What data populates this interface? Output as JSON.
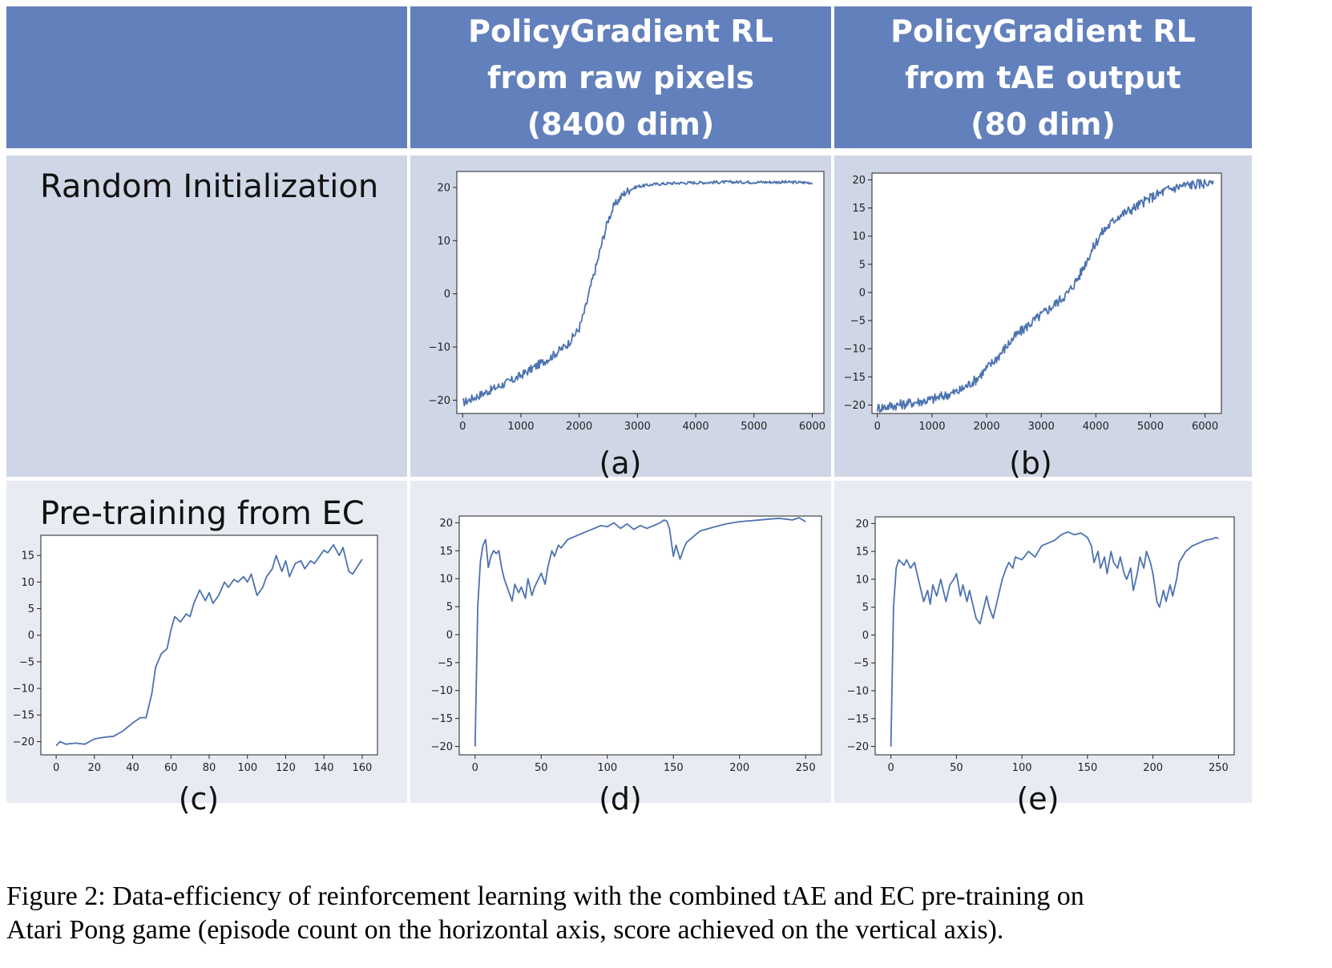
{
  "columns": {
    "raw": [
      "PolicyGradient RL",
      "from raw pixels",
      "(8400 dim)"
    ],
    "tae": [
      "PolicyGradient RL",
      "from tAE output",
      "(80 dim)"
    ]
  },
  "rows": {
    "random": "Random Initialization",
    "pretrain": "Pre-training from EC"
  },
  "caption": {
    "line1": "Figure 2: Data-efficiency of reinforcement learning with the combined tAE and EC pre-training on",
    "line2": "Atari Pong game (episode count on the horizontal axis, score achieved on the vertical axis)."
  },
  "chart_data": [
    {
      "id": "a",
      "label": "(a)",
      "type": "line",
      "color": "#4c72b0",
      "xlim": [
        -100,
        6200
      ],
      "ylim": [
        -22.5,
        23
      ],
      "xticks": [
        0,
        1000,
        2000,
        3000,
        4000,
        5000,
        6000
      ],
      "yticks": [
        -20,
        -10,
        0,
        10,
        20
      ],
      "series": [
        {
          "x": [
            0,
            300,
            600,
            900,
            1200,
            1500,
            1800,
            2000,
            2100,
            2200,
            2300,
            2400,
            2500,
            2600,
            2700,
            2800,
            3000,
            3300,
            3600,
            4000,
            4500,
            5000,
            5500,
            6000
          ],
          "y": [
            -20.5,
            -19,
            -17.5,
            -16,
            -14,
            -12,
            -9.5,
            -6.5,
            -3,
            1.5,
            5.5,
            10,
            14,
            16.5,
            18,
            19.2,
            20.2,
            20.6,
            20.8,
            20.9,
            21,
            21,
            21,
            20.9
          ]
        }
      ],
      "noise": 0.8
    },
    {
      "id": "b",
      "label": "(b)",
      "type": "line",
      "color": "#4c72b0",
      "xlim": [
        -100,
        6300
      ],
      "ylim": [
        -21.5,
        21.2
      ],
      "xticks": [
        0,
        1000,
        2000,
        3000,
        4000,
        5000,
        6000
      ],
      "yticks": [
        -20,
        -15,
        -10,
        -5,
        0,
        5,
        10,
        15,
        20
      ],
      "series": [
        {
          "x": [
            0,
            500,
            1000,
            1500,
            1800,
            2000,
            2200,
            2500,
            2800,
            3000,
            3200,
            3500,
            3700,
            3900,
            4100,
            4400,
            4700,
            5000,
            5300,
            5600,
            5900,
            6150
          ],
          "y": [
            -20.5,
            -19.8,
            -19,
            -17.5,
            -15.5,
            -13.5,
            -11.5,
            -8,
            -5.5,
            -4,
            -2.5,
            0,
            3,
            7,
            10.5,
            13.5,
            15,
            16.8,
            18.2,
            19,
            19.3,
            19.6
          ]
        }
      ],
      "noise": 0.9
    },
    {
      "id": "c",
      "label": "(c)",
      "type": "line",
      "color": "#4c72b0",
      "xlim": [
        -8,
        168
      ],
      "ylim": [
        -22.5,
        18.8
      ],
      "xticks": [
        0,
        20,
        40,
        60,
        80,
        100,
        120,
        140,
        160
      ],
      "yticks": [
        -20,
        -15,
        -10,
        -5,
        0,
        5,
        10,
        15
      ],
      "series": [
        {
          "x": [
            0,
            2,
            5,
            10,
            15,
            20,
            25,
            30,
            35,
            40,
            44,
            47,
            50,
            52,
            55,
            58,
            60,
            62,
            65,
            68,
            70,
            72,
            75,
            78,
            80,
            82,
            85,
            88,
            90,
            93,
            95,
            98,
            100,
            102,
            105,
            108,
            110,
            113,
            115,
            118,
            120,
            122,
            125,
            128,
            130,
            133,
            135,
            138,
            140,
            142,
            145,
            148,
            150,
            153,
            155,
            160
          ],
          "y": [
            -20.8,
            -20,
            -20.5,
            -20.3,
            -20.5,
            -19.5,
            -19.2,
            -19,
            -18,
            -16.5,
            -15.5,
            -15.5,
            -11,
            -6,
            -3.5,
            -2.5,
            1,
            3.5,
            2.5,
            4,
            3.5,
            6,
            8.5,
            6.5,
            8,
            6,
            7.5,
            10,
            9,
            10.5,
            10,
            11,
            10,
            11.5,
            7.5,
            9,
            11,
            12.5,
            15,
            12,
            14,
            11,
            13.5,
            14,
            12.5,
            14,
            13.5,
            15,
            16,
            15.5,
            17,
            15,
            16.5,
            12,
            11.5,
            14.3
          ]
        }
      ],
      "noise": 0
    },
    {
      "id": "d",
      "label": "(d)",
      "type": "line",
      "color": "#4c72b0",
      "xlim": [
        -12,
        262
      ],
      "ylim": [
        -21.5,
        21.2
      ],
      "xticks": [
        0,
        50,
        100,
        150,
        200,
        250
      ],
      "yticks": [
        -20,
        -15,
        -10,
        -5,
        0,
        5,
        10,
        15,
        20
      ],
      "series": [
        {
          "x": [
            0,
            2,
            4,
            6,
            8,
            10,
            12,
            14,
            16,
            18,
            20,
            22,
            25,
            28,
            30,
            33,
            35,
            38,
            40,
            43,
            45,
            48,
            50,
            53,
            55,
            58,
            60,
            63,
            65,
            70,
            75,
            80,
            85,
            90,
            95,
            100,
            105,
            110,
            115,
            120,
            125,
            130,
            135,
            140,
            143,
            145,
            147,
            150,
            152,
            155,
            158,
            160,
            165,
            170,
            180,
            190,
            200,
            210,
            220,
            230,
            240,
            245,
            250
          ],
          "y": [
            -20,
            5,
            13,
            16,
            17,
            12,
            14,
            15,
            14.5,
            15,
            12,
            10,
            8,
            6,
            9,
            7.5,
            8.5,
            6.5,
            10,
            7,
            8.5,
            10,
            11,
            9,
            12,
            15,
            14,
            16,
            15.5,
            17,
            17.5,
            18,
            18.5,
            19,
            19.5,
            19.3,
            20,
            19,
            19.8,
            18.8,
            19.5,
            19,
            19.5,
            20,
            20.5,
            20.3,
            19,
            14,
            16,
            13.5,
            15.5,
            16.5,
            17.5,
            18.5,
            19.2,
            19.8,
            20.2,
            20.4,
            20.6,
            20.8,
            20.5,
            20.9,
            20.2
          ]
        }
      ],
      "noise": 0
    },
    {
      "id": "e",
      "label": "(e)",
      "type": "line",
      "color": "#4c72b0",
      "xlim": [
        -12,
        262
      ],
      "ylim": [
        -21.5,
        21.2
      ],
      "xticks": [
        0,
        50,
        100,
        150,
        200,
        250
      ],
      "yticks": [
        -20,
        -15,
        -10,
        -5,
        0,
        5,
        10,
        15,
        20
      ],
      "series": [
        {
          "x": [
            0,
            2,
            4,
            6,
            8,
            10,
            12,
            15,
            18,
            20,
            22,
            25,
            28,
            30,
            32,
            35,
            38,
            40,
            42,
            45,
            48,
            50,
            53,
            55,
            58,
            60,
            63,
            65,
            68,
            70,
            73,
            75,
            78,
            80,
            83,
            85,
            88,
            90,
            93,
            95,
            100,
            105,
            110,
            115,
            120,
            125,
            130,
            135,
            140,
            145,
            150,
            153,
            155,
            158,
            160,
            163,
            165,
            168,
            170,
            173,
            175,
            178,
            180,
            183,
            185,
            188,
            190,
            193,
            195,
            198,
            200,
            203,
            205,
            208,
            210,
            213,
            215,
            218,
            220,
            225,
            230,
            235,
            240,
            245,
            248,
            250
          ],
          "y": [
            -20,
            5,
            12,
            13.5,
            13,
            12.5,
            13.5,
            12,
            13,
            11,
            9,
            6,
            8,
            5.5,
            9,
            7,
            10,
            8,
            6,
            9,
            10,
            11,
            7,
            9,
            6,
            8,
            5,
            3,
            2,
            4,
            7,
            5,
            3,
            5,
            8,
            10,
            12,
            13,
            12,
            14,
            13.5,
            15,
            14,
            16,
            16.5,
            17,
            18,
            18.5,
            18,
            18.3,
            17.5,
            16,
            13,
            15,
            12,
            14,
            11,
            15,
            13,
            12,
            14,
            11,
            10,
            12,
            8,
            11,
            14,
            12,
            15,
            13,
            11,
            6,
            5,
            8,
            6,
            9,
            7,
            10,
            13,
            15,
            16,
            16.5,
            17,
            17.2,
            17.5,
            17.3
          ]
        }
      ],
      "noise": 0
    }
  ]
}
